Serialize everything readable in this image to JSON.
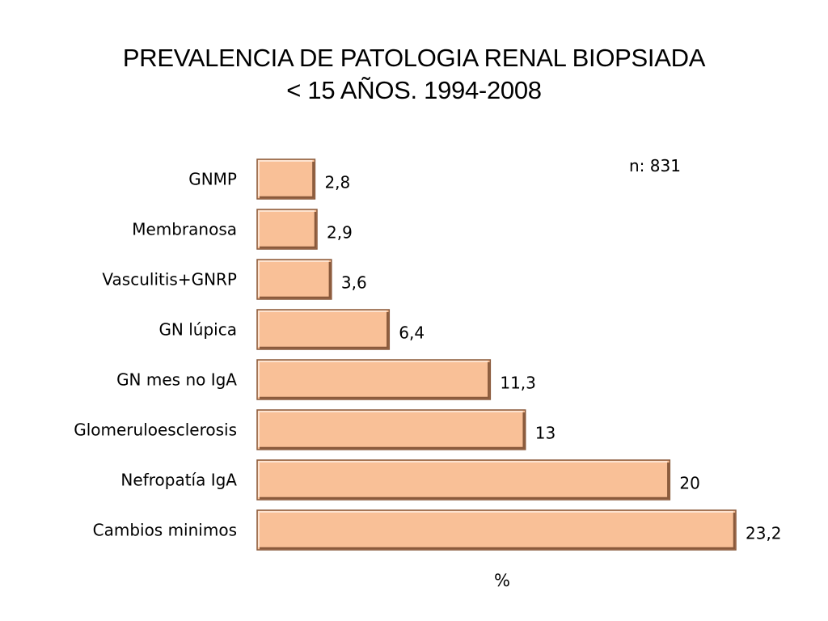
{
  "title_line1": "PREVALENCIA DE PATOLOGIA RENAL BIOPSIADA",
  "title_line2": "< 15 AÑOS. 1994-2008",
  "annotation": "n: 831",
  "colors": {
    "bar_fill": "#f9c097",
    "bar_edge_dark": "#8a5a3c",
    "bar_edge_light": "#fde3d0"
  },
  "chart_data": {
    "type": "bar",
    "orientation": "horizontal",
    "title": "PREVALENCIA DE PATOLOGIA RENAL BIOPSIADA < 15 AÑOS. 1994-2008",
    "xlabel": "%",
    "ylabel": "",
    "categories": [
      "GNMP",
      "Membranosa",
      "Vasculitis+GNRP",
      "GN lúpica",
      "GN mes no IgA",
      "Glomeruloesclerosis",
      "Nefropatía IgA",
      "Cambios minimos"
    ],
    "values": [
      2.8,
      2.9,
      3.6,
      6.4,
      11.3,
      13,
      20,
      23.2
    ],
    "value_labels": [
      "2,8",
      "2,9",
      "3,6",
      "6,4",
      "11,3",
      "13",
      "20",
      "23,2"
    ],
    "xlim": [
      0,
      23.2
    ],
    "grid": false,
    "legend": "none",
    "annotations": [
      "n: 831"
    ]
  }
}
